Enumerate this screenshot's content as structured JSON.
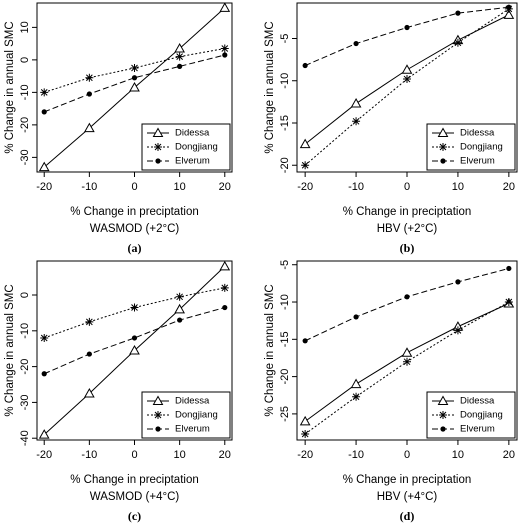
{
  "chart_data": [
    {
      "type": "line",
      "panel_label": "(a)",
      "subtitle": "WASMOD (+2°C)",
      "xlabel": "% Change in preciptation",
      "ylabel": "% Change in annual SMC",
      "x": [
        -20,
        -10,
        0,
        10,
        20
      ],
      "xlim": [
        -21.6,
        21.6
      ],
      "xticks": [
        -20,
        -10,
        0,
        10,
        20
      ],
      "ylim": [
        -34.5,
        17.5
      ],
      "yticks": [
        -30,
        -20,
        -10,
        0,
        10
      ],
      "legend": "bottom-right",
      "series": [
        {
          "name": "Didessa",
          "color": "#000000",
          "linestyle": "solid",
          "marker": "triangle",
          "values": [
            -33,
            -21,
            -8.5,
            3.5,
            16
          ]
        },
        {
          "name": "Dongjiang",
          "color": "#000000",
          "linestyle": "dotted",
          "marker": "asterisk",
          "values": [
            -10,
            -5.5,
            -2.5,
            1,
            3.5
          ]
        },
        {
          "name": "Elverum",
          "color": "#000000",
          "linestyle": "dashed",
          "marker": "circle",
          "values": [
            -16,
            -10.5,
            -5.5,
            -2,
            1.5
          ]
        }
      ]
    },
    {
      "type": "line",
      "panel_label": "(b)",
      "subtitle": "HBV (+2°C)",
      "xlabel": "% Change in preciptation",
      "ylabel": "% Change in annual SMC",
      "x": [
        -20,
        -10,
        0,
        10,
        20
      ],
      "xlim": [
        -21.6,
        21.6
      ],
      "xticks": [
        -20,
        -10,
        0,
        10,
        20
      ],
      "ylim": [
        -20.8,
        -0.8
      ],
      "yticks": [
        -20,
        -15,
        -10,
        -5
      ],
      "legend": "bottom-right",
      "series": [
        {
          "name": "Didessa",
          "color": "#000000",
          "linestyle": "solid",
          "marker": "triangle",
          "values": [
            -17.5,
            -12.7,
            -8.7,
            -5.2,
            -2.2
          ]
        },
        {
          "name": "Dongjiang",
          "color": "#000000",
          "linestyle": "dotted",
          "marker": "asterisk",
          "values": [
            -20,
            -14.8,
            -9.8,
            -5.5,
            -1.5
          ]
        },
        {
          "name": "Elverum",
          "color": "#000000",
          "linestyle": "dashed",
          "marker": "circle",
          "values": [
            -8.2,
            -5.6,
            -3.7,
            -2,
            -1.3
          ]
        }
      ]
    },
    {
      "type": "line",
      "panel_label": "(c)",
      "subtitle": "WASMOD (+4°C)",
      "xlabel": "% Change in preciptation",
      "ylabel": "% Change in annual SMC",
      "x": [
        -20,
        -10,
        0,
        10,
        20
      ],
      "xlim": [
        -21.6,
        21.6
      ],
      "xticks": [
        -20,
        -10,
        0,
        10,
        20
      ],
      "ylim": [
        -40.5,
        9.5
      ],
      "yticks": [
        -40,
        -30,
        -20,
        -10,
        0
      ],
      "legend": "bottom-right",
      "series": [
        {
          "name": "Didessa",
          "color": "#000000",
          "linestyle": "solid",
          "marker": "triangle",
          "values": [
            -39,
            -27.5,
            -15.5,
            -4,
            8
          ]
        },
        {
          "name": "Dongjiang",
          "color": "#000000",
          "linestyle": "dotted",
          "marker": "asterisk",
          "values": [
            -12,
            -7.5,
            -3.5,
            -0.5,
            2
          ]
        },
        {
          "name": "Elverum",
          "color": "#000000",
          "linestyle": "dashed",
          "marker": "circle",
          "values": [
            -22,
            -16.5,
            -12,
            -7,
            -3.5
          ]
        }
      ]
    },
    {
      "type": "line",
      "panel_label": "(d)",
      "subtitle": "HBV (+4°C)",
      "xlabel": "% Change in preciptation",
      "ylabel": "% Change in annual SMC",
      "x": [
        -20,
        -10,
        0,
        10,
        20
      ],
      "xlim": [
        -21.6,
        21.6
      ],
      "xticks": [
        -20,
        -10,
        0,
        10,
        20
      ],
      "ylim": [
        -28.5,
        -4.5
      ],
      "yticks": [
        -25,
        -20,
        -15,
        -10,
        -5
      ],
      "legend": "bottom-right",
      "series": [
        {
          "name": "Didessa",
          "color": "#000000",
          "linestyle": "solid",
          "marker": "triangle",
          "values": [
            -26,
            -21,
            -16.8,
            -13.3,
            -10.2
          ]
        },
        {
          "name": "Dongjiang",
          "color": "#000000",
          "linestyle": "dotted",
          "marker": "asterisk",
          "values": [
            -27.7,
            -22.7,
            -18,
            -13.8,
            -10
          ]
        },
        {
          "name": "Elverum",
          "color": "#000000",
          "linestyle": "dashed",
          "marker": "circle",
          "values": [
            -15.2,
            -12,
            -9.3,
            -7.3,
            -5.5
          ]
        }
      ]
    }
  ]
}
